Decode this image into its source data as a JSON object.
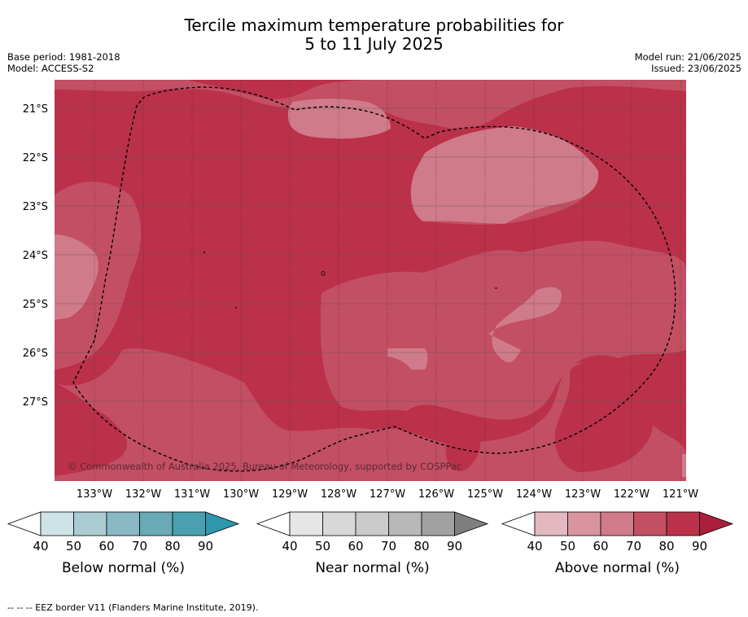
{
  "title": {
    "line1": "Tercile maximum temperature probabilities for",
    "line2": "5 to 11 July 2025"
  },
  "meta_left": {
    "base_period": "Base period: 1981-2018",
    "model": "Model: ACCESS-S2"
  },
  "meta_right": {
    "model_run": "Model run: 21/06/2025",
    "issued": "Issued: 23/06/2025"
  },
  "map": {
    "lat_labels": [
      "21°S",
      "22°S",
      "23°S",
      "24°S",
      "25°S",
      "26°S",
      "27°S"
    ],
    "lon_labels": [
      "133°W",
      "132°W",
      "131°W",
      "130°W",
      "129°W",
      "128°W",
      "127°W",
      "126°W",
      "125°W",
      "124°W",
      "123°W",
      "122°W",
      "121°W"
    ],
    "copyright": "© Commonwealth of Australia 2025, Bureau of Meteorology, supported by COSPPac",
    "colors": {
      "above_80": "#bb3149",
      "above_70": "#c34f63",
      "above_60": "#d07b89",
      "above_90": "#ab1f3b"
    }
  },
  "colorbars": [
    {
      "title": "Below normal (%)",
      "ticks": [
        "40",
        "50",
        "60",
        "70",
        "80",
        "90"
      ],
      "colors": [
        "#ffffff",
        "#cde3e8",
        "#abcbd2",
        "#89b9c4",
        "#6aa9b6",
        "#4aa0b0",
        "#2d97ae"
      ]
    },
    {
      "title": "Near normal (%)",
      "ticks": [
        "40",
        "50",
        "60",
        "70",
        "80",
        "90"
      ],
      "colors": [
        "#ffffff",
        "#e6e6e6",
        "#d8d8d8",
        "#cbcbcb",
        "#b8b8b8",
        "#a1a1a1",
        "#7f7f7f"
      ]
    },
    {
      "title": "Above normal (%)",
      "ticks": [
        "40",
        "50",
        "60",
        "70",
        "80",
        "90"
      ],
      "colors": [
        "#ffffff",
        "#e4b8c0",
        "#d8959f",
        "#d07b89",
        "#c34f63",
        "#bb3149",
        "#ab1f3b"
      ]
    }
  ],
  "footnote": "--  --  -- EEZ border V11 (Flanders Marine Institute, 2019)."
}
